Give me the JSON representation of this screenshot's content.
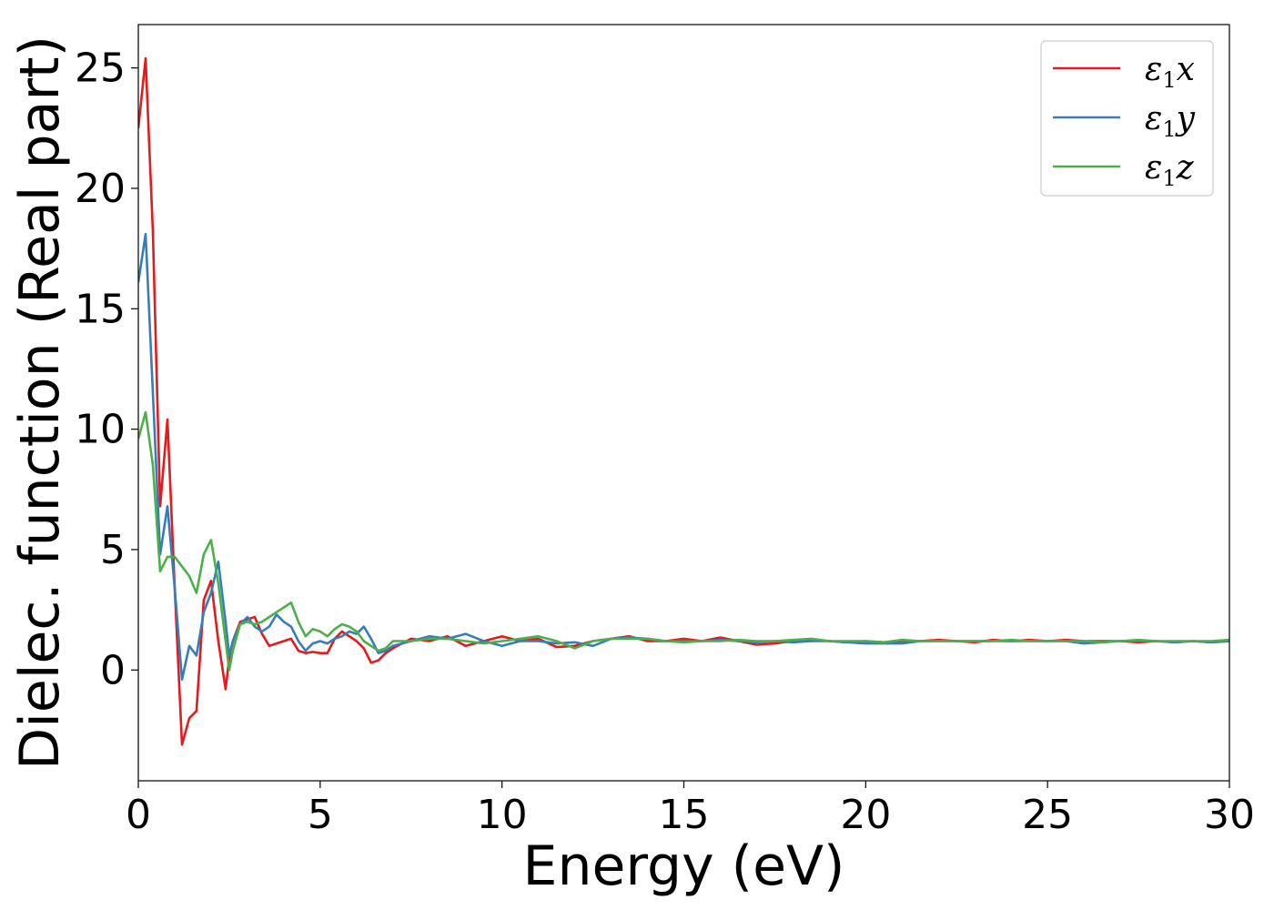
{
  "chart_data": {
    "type": "line",
    "title": "",
    "xlabel": "Energy (eV)",
    "ylabel": "Dielec. function (Real part)",
    "xlim": [
      0,
      30
    ],
    "ylim": [
      -4.6,
      26.8
    ],
    "xticks": [
      0,
      5,
      10,
      15,
      20,
      25,
      30
    ],
    "yticks": [
      0,
      5,
      10,
      15,
      20,
      25
    ],
    "grid": false,
    "legend_position": "top-right",
    "series": [
      {
        "name": "ε₁x",
        "label_main": "ε",
        "label_sub": "1",
        "label_suffix": "x",
        "color": "#e41a1c",
        "x": [
          0,
          0.2,
          0.4,
          0.6,
          0.8,
          1.0,
          1.2,
          1.4,
          1.6,
          1.8,
          2.0,
          2.2,
          2.4,
          2.5,
          2.6,
          2.8,
          3.0,
          3.2,
          3.4,
          3.6,
          3.8,
          4.0,
          4.2,
          4.4,
          4.6,
          4.8,
          5.0,
          5.2,
          5.4,
          5.6,
          5.8,
          6.0,
          6.2,
          6.4,
          6.6,
          6.8,
          7.0,
          7.5,
          8.0,
          8.5,
          9.0,
          9.5,
          10.0,
          10.5,
          11.0,
          11.5,
          12.0,
          12.5,
          13.0,
          13.5,
          14.0,
          14.5,
          15.0,
          15.5,
          16.0,
          16.5,
          17.0,
          17.5,
          18.0,
          18.5,
          19.0,
          19.5,
          20.0,
          20.5,
          21.0,
          21.5,
          22.0,
          22.5,
          23.0,
          23.5,
          24.0,
          24.5,
          25.0,
          25.5,
          26.0,
          26.5,
          27.0,
          27.5,
          28.0,
          28.5,
          29.0,
          29.5,
          30.0
        ],
        "y": [
          22.5,
          25.4,
          18.2,
          6.8,
          10.4,
          3.4,
          -3.1,
          -2.0,
          -1.7,
          2.9,
          3.7,
          1.2,
          -0.8,
          0.5,
          1.2,
          2.0,
          2.1,
          2.2,
          1.5,
          1.0,
          1.1,
          1.2,
          1.3,
          0.8,
          0.7,
          0.75,
          0.7,
          0.7,
          1.3,
          1.6,
          1.4,
          1.2,
          0.9,
          0.3,
          0.4,
          0.7,
          0.9,
          1.3,
          1.2,
          1.4,
          1.0,
          1.2,
          1.4,
          1.2,
          1.3,
          0.95,
          1.0,
          1.2,
          1.3,
          1.4,
          1.2,
          1.2,
          1.3,
          1.2,
          1.35,
          1.2,
          1.05,
          1.1,
          1.2,
          1.25,
          1.2,
          1.15,
          1.2,
          1.15,
          1.2,
          1.2,
          1.25,
          1.2,
          1.15,
          1.25,
          1.2,
          1.25,
          1.2,
          1.25,
          1.2,
          1.2,
          1.2,
          1.15,
          1.2,
          1.15,
          1.2,
          1.15,
          1.2
        ]
      },
      {
        "name": "ε₁y",
        "label_main": "ε",
        "label_sub": "1",
        "label_suffix": "y",
        "color": "#377eb8",
        "x": [
          0,
          0.2,
          0.4,
          0.6,
          0.8,
          1.0,
          1.2,
          1.4,
          1.6,
          1.8,
          2.0,
          2.2,
          2.4,
          2.5,
          2.6,
          2.8,
          3.0,
          3.2,
          3.4,
          3.6,
          3.8,
          4.0,
          4.2,
          4.4,
          4.6,
          4.8,
          5.0,
          5.2,
          5.4,
          5.6,
          5.8,
          6.0,
          6.2,
          6.4,
          6.6,
          6.8,
          7.0,
          7.5,
          8.0,
          8.5,
          9.0,
          9.5,
          10.0,
          10.5,
          11.0,
          11.5,
          12.0,
          12.5,
          13.0,
          13.5,
          14.0,
          14.5,
          15.0,
          15.5,
          16.0,
          16.5,
          17.0,
          17.5,
          18.0,
          18.5,
          19.0,
          19.5,
          20.0,
          20.5,
          21.0,
          21.5,
          22.0,
          22.5,
          23.0,
          23.5,
          24.0,
          24.5,
          25.0,
          25.5,
          26.0,
          26.5,
          27.0,
          27.5,
          28.0,
          28.5,
          29.0,
          29.5,
          30.0
        ],
        "y": [
          16.1,
          18.1,
          11.5,
          4.8,
          6.8,
          3.4,
          -0.4,
          1.0,
          0.6,
          2.4,
          3.2,
          4.5,
          2.0,
          0.6,
          1.2,
          1.9,
          2.2,
          1.8,
          1.6,
          1.8,
          2.3,
          2.0,
          1.8,
          1.2,
          0.8,
          1.1,
          1.2,
          1.1,
          1.3,
          1.4,
          1.6,
          1.5,
          1.8,
          1.3,
          0.7,
          0.8,
          1.0,
          1.2,
          1.4,
          1.3,
          1.5,
          1.2,
          1.0,
          1.2,
          1.2,
          1.1,
          1.15,
          1.0,
          1.3,
          1.35,
          1.3,
          1.2,
          1.2,
          1.2,
          1.25,
          1.2,
          1.15,
          1.2,
          1.15,
          1.2,
          1.2,
          1.15,
          1.1,
          1.1,
          1.1,
          1.2,
          1.2,
          1.2,
          1.2,
          1.2,
          1.2,
          1.2,
          1.2,
          1.2,
          1.1,
          1.15,
          1.2,
          1.2,
          1.2,
          1.15,
          1.2,
          1.15,
          1.2
        ]
      },
      {
        "name": "ε₁z",
        "label_main": "ε",
        "label_sub": "1",
        "label_suffix": "z",
        "color": "#4daf4a",
        "x": [
          0,
          0.2,
          0.4,
          0.6,
          0.8,
          1.0,
          1.2,
          1.4,
          1.6,
          1.8,
          2.0,
          2.2,
          2.4,
          2.5,
          2.6,
          2.8,
          3.0,
          3.2,
          3.4,
          3.6,
          3.8,
          4.0,
          4.2,
          4.4,
          4.6,
          4.8,
          5.0,
          5.2,
          5.4,
          5.6,
          5.8,
          6.0,
          6.2,
          6.4,
          6.6,
          6.8,
          7.0,
          7.5,
          8.0,
          8.5,
          9.0,
          9.5,
          10.0,
          10.5,
          11.0,
          11.5,
          12.0,
          12.5,
          13.0,
          13.5,
          14.0,
          14.5,
          15.0,
          15.5,
          16.0,
          16.5,
          17.0,
          17.5,
          18.0,
          18.5,
          19.0,
          19.5,
          20.0,
          20.5,
          21.0,
          21.5,
          22.0,
          22.5,
          23.0,
          23.5,
          24.0,
          24.5,
          25.0,
          25.5,
          26.0,
          26.5,
          27.0,
          27.5,
          28.0,
          28.5,
          29.0,
          29.5,
          30.0
        ],
        "y": [
          9.6,
          10.7,
          8.5,
          4.1,
          4.7,
          4.7,
          4.3,
          3.9,
          3.2,
          4.8,
          5.4,
          3.6,
          1.2,
          0.0,
          0.8,
          1.9,
          2.0,
          1.9,
          2.0,
          2.2,
          2.4,
          2.6,
          2.8,
          2.0,
          1.4,
          1.7,
          1.6,
          1.4,
          1.7,
          1.9,
          1.8,
          1.6,
          1.2,
          1.0,
          0.8,
          0.9,
          1.2,
          1.2,
          1.3,
          1.3,
          1.2,
          1.1,
          1.2,
          1.3,
          1.4,
          1.2,
          0.9,
          1.2,
          1.3,
          1.3,
          1.3,
          1.2,
          1.15,
          1.2,
          1.2,
          1.25,
          1.2,
          1.2,
          1.25,
          1.3,
          1.2,
          1.2,
          1.2,
          1.15,
          1.25,
          1.2,
          1.2,
          1.2,
          1.2,
          1.2,
          1.25,
          1.2,
          1.2,
          1.2,
          1.2,
          1.15,
          1.2,
          1.25,
          1.2,
          1.2,
          1.2,
          1.2,
          1.25
        ]
      }
    ]
  }
}
